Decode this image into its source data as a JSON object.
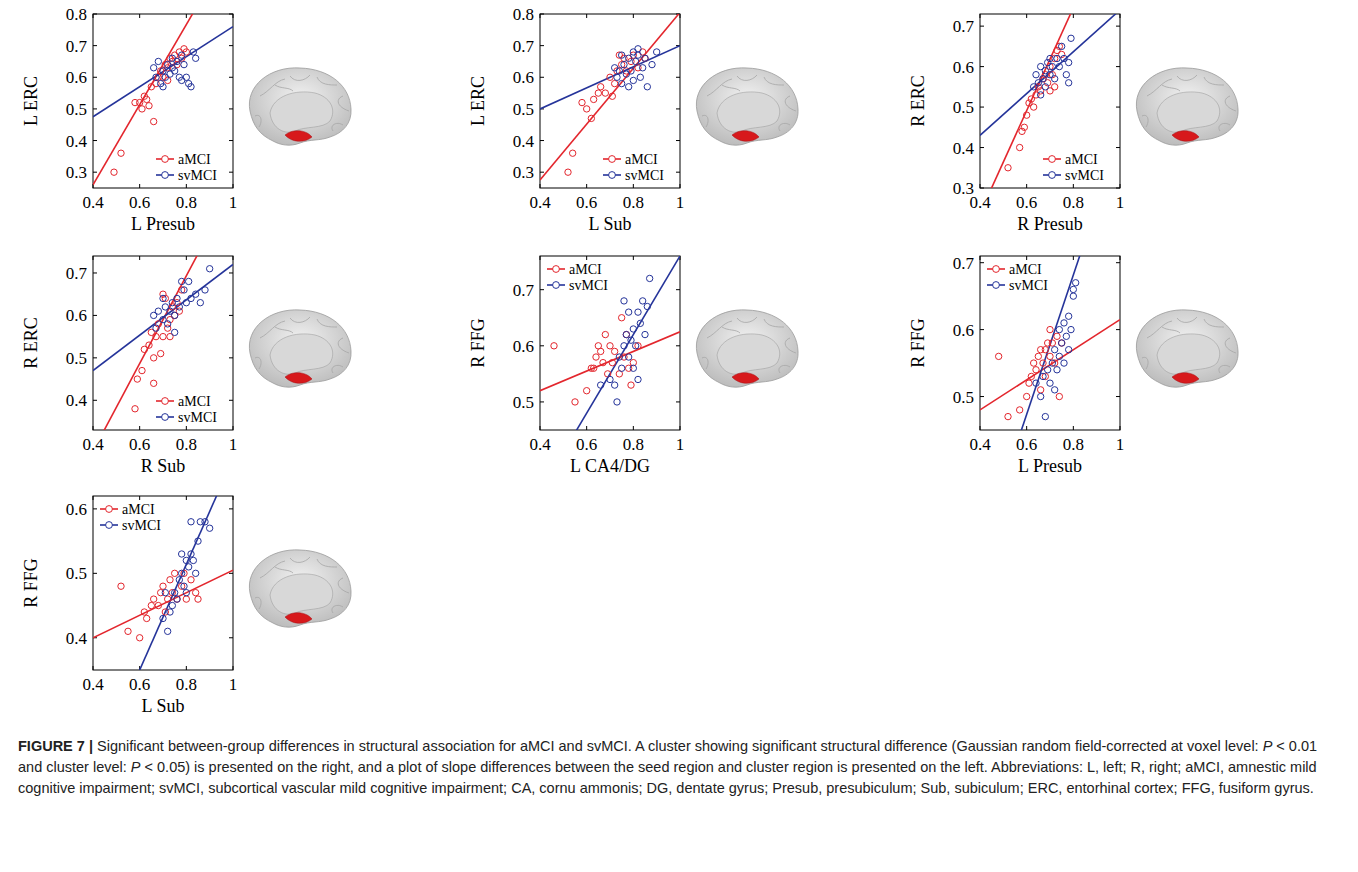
{
  "chart_data": [
    {
      "type": "scatter",
      "x_label": "L Presub",
      "y_label": "L ERC",
      "xlim": [
        0.4,
        1
      ],
      "xticks": [
        0.4,
        0.6,
        0.8,
        1
      ],
      "ylim": [
        0.25,
        0.8
      ],
      "yticks": [
        0.3,
        0.4,
        0.5,
        0.6,
        0.7,
        0.8
      ],
      "legend": "lower right",
      "series": [
        {
          "name": "aMCI",
          "color": "#e3262d",
          "marker": "circle",
          "x": [
            0.49,
            0.52,
            0.58,
            0.6,
            0.61,
            0.62,
            0.63,
            0.64,
            0.65,
            0.66,
            0.67,
            0.68,
            0.69,
            0.7,
            0.71,
            0.72,
            0.73,
            0.74,
            0.75,
            0.76,
            0.77,
            0.78,
            0.79,
            0.8,
            0.72
          ],
          "values": [
            0.3,
            0.36,
            0.52,
            0.52,
            0.5,
            0.54,
            0.53,
            0.51,
            0.57,
            0.46,
            0.58,
            0.6,
            0.62,
            0.6,
            0.64,
            0.63,
            0.66,
            0.65,
            0.67,
            0.64,
            0.68,
            0.66,
            0.69,
            0.68,
            0.59
          ],
          "fit_line": {
            "x": [
              0.4,
              1
            ],
            "values": [
              0.26,
              1.02
            ]
          }
        },
        {
          "name": "svMCI",
          "color": "#25349a",
          "marker": "circle",
          "x": [
            0.66,
            0.67,
            0.68,
            0.69,
            0.7,
            0.7,
            0.71,
            0.72,
            0.73,
            0.74,
            0.74,
            0.75,
            0.76,
            0.77,
            0.78,
            0.78,
            0.79,
            0.8,
            0.81,
            0.83,
            0.84,
            0.82
          ],
          "values": [
            0.63,
            0.6,
            0.65,
            0.58,
            0.62,
            0.57,
            0.6,
            0.64,
            0.61,
            0.63,
            0.66,
            0.62,
            0.65,
            0.6,
            0.59,
            0.67,
            0.64,
            0.6,
            0.58,
            0.68,
            0.66,
            0.57
          ],
          "fit_line": {
            "x": [
              0.4,
              1
            ],
            "values": [
              0.475,
              0.76
            ]
          }
        }
      ]
    },
    {
      "type": "scatter",
      "x_label": "L Sub",
      "y_label": "L ERC",
      "xlim": [
        0.4,
        1
      ],
      "xticks": [
        0.4,
        0.6,
        0.8,
        1
      ],
      "ylim": [
        0.25,
        0.8
      ],
      "yticks": [
        0.3,
        0.4,
        0.5,
        0.6,
        0.7,
        0.8
      ],
      "legend": "lower right",
      "series": [
        {
          "name": "aMCI",
          "color": "#e3262d",
          "marker": "circle",
          "x": [
            0.52,
            0.54,
            0.58,
            0.6,
            0.62,
            0.63,
            0.65,
            0.66,
            0.68,
            0.7,
            0.72,
            0.73,
            0.75,
            0.76,
            0.77,
            0.79,
            0.8,
            0.82,
            0.84,
            0.85,
            0.74,
            0.71
          ],
          "values": [
            0.3,
            0.36,
            0.52,
            0.5,
            0.47,
            0.53,
            0.55,
            0.57,
            0.55,
            0.6,
            0.58,
            0.62,
            0.64,
            0.66,
            0.62,
            0.65,
            0.67,
            0.63,
            0.68,
            0.66,
            0.67,
            0.54
          ],
          "fit_line": {
            "x": [
              0.4,
              1
            ],
            "values": [
              0.275,
              0.805
            ]
          }
        },
        {
          "name": "svMCI",
          "color": "#25349a",
          "marker": "circle",
          "x": [
            0.72,
            0.73,
            0.74,
            0.75,
            0.76,
            0.77,
            0.78,
            0.79,
            0.8,
            0.8,
            0.81,
            0.82,
            0.83,
            0.84,
            0.85,
            0.86,
            0.88,
            0.9,
            0.78,
            0.75,
            0.82
          ],
          "values": [
            0.63,
            0.6,
            0.62,
            0.58,
            0.64,
            0.61,
            0.66,
            0.62,
            0.68,
            0.59,
            0.65,
            0.67,
            0.6,
            0.63,
            0.66,
            0.57,
            0.64,
            0.68,
            0.57,
            0.67,
            0.69
          ],
          "fit_line": {
            "x": [
              0.4,
              1
            ],
            "values": [
              0.5,
              0.7
            ]
          }
        }
      ]
    },
    {
      "type": "scatter",
      "x_label": "R Presub",
      "y_label": "R ERC",
      "xlim": [
        0.4,
        1
      ],
      "xticks": [
        0.4,
        0.6,
        0.8,
        1
      ],
      "ylim": [
        0.3,
        0.73
      ],
      "yticks": [
        0.3,
        0.4,
        0.5,
        0.6,
        0.7
      ],
      "legend": "lower right",
      "series": [
        {
          "name": "aMCI",
          "color": "#e3262d",
          "marker": "circle",
          "x": [
            0.52,
            0.57,
            0.58,
            0.59,
            0.6,
            0.61,
            0.62,
            0.63,
            0.64,
            0.65,
            0.66,
            0.67,
            0.68,
            0.69,
            0.7,
            0.71,
            0.72,
            0.73,
            0.74,
            0.72,
            0.7,
            0.75
          ],
          "values": [
            0.35,
            0.4,
            0.44,
            0.45,
            0.48,
            0.51,
            0.52,
            0.5,
            0.53,
            0.55,
            0.54,
            0.57,
            0.58,
            0.56,
            0.6,
            0.58,
            0.62,
            0.64,
            0.65,
            0.55,
            0.54,
            0.63
          ],
          "fit_line": {
            "x": [
              0.4,
              1
            ],
            "values": [
              0.237,
              1.0
            ]
          }
        },
        {
          "name": "svMCI",
          "color": "#25349a",
          "marker": "circle",
          "x": [
            0.63,
            0.64,
            0.65,
            0.66,
            0.67,
            0.68,
            0.68,
            0.69,
            0.7,
            0.71,
            0.72,
            0.73,
            0.74,
            0.75,
            0.76,
            0.77,
            0.78,
            0.79,
            0.7,
            0.66,
            0.78
          ],
          "values": [
            0.55,
            0.58,
            0.56,
            0.6,
            0.57,
            0.59,
            0.55,
            0.61,
            0.58,
            0.6,
            0.57,
            0.62,
            0.6,
            0.65,
            0.62,
            0.58,
            0.61,
            0.67,
            0.62,
            0.53,
            0.56
          ],
          "fit_line": {
            "x": [
              0.4,
              1
            ],
            "values": [
              0.43,
              0.74
            ]
          }
        }
      ]
    },
    {
      "type": "scatter",
      "x_label": "R Sub",
      "y_label": "R ERC",
      "xlim": [
        0.4,
        1
      ],
      "xticks": [
        0.4,
        0.6,
        0.8,
        1
      ],
      "ylim": [
        0.33,
        0.74
      ],
      "yticks": [
        0.4,
        0.5,
        0.6,
        0.7
      ],
      "legend": "lower right",
      "series": [
        {
          "name": "aMCI",
          "color": "#e3262d",
          "marker": "circle",
          "x": [
            0.58,
            0.59,
            0.61,
            0.62,
            0.64,
            0.65,
            0.66,
            0.67,
            0.68,
            0.69,
            0.7,
            0.71,
            0.72,
            0.73,
            0.74,
            0.75,
            0.76,
            0.77,
            0.66,
            0.78,
            0.7,
            0.73
          ],
          "values": [
            0.38,
            0.45,
            0.47,
            0.52,
            0.53,
            0.56,
            0.5,
            0.55,
            0.58,
            0.51,
            0.65,
            0.64,
            0.57,
            0.59,
            0.62,
            0.6,
            0.63,
            0.61,
            0.44,
            0.66,
            0.55,
            0.55
          ],
          "fit_line": {
            "x": [
              0.4,
              1
            ],
            "values": [
              0.28,
              0.9
            ]
          }
        },
        {
          "name": "svMCI",
          "color": "#25349a",
          "marker": "circle",
          "x": [
            0.66,
            0.67,
            0.68,
            0.7,
            0.71,
            0.72,
            0.73,
            0.74,
            0.75,
            0.76,
            0.77,
            0.78,
            0.79,
            0.8,
            0.81,
            0.82,
            0.84,
            0.86,
            0.88,
            0.9,
            0.75,
            0.7
          ],
          "values": [
            0.6,
            0.57,
            0.61,
            0.59,
            0.62,
            0.58,
            0.61,
            0.63,
            0.6,
            0.64,
            0.62,
            0.68,
            0.66,
            0.63,
            0.68,
            0.64,
            0.65,
            0.63,
            0.66,
            0.71,
            0.56,
            0.64
          ],
          "fit_line": {
            "x": [
              0.4,
              1
            ],
            "values": [
              0.47,
              0.72
            ]
          }
        }
      ]
    },
    {
      "type": "scatter",
      "x_label": "L CA4/DG",
      "y_label": "R FFG",
      "xlim": [
        0.4,
        1
      ],
      "xticks": [
        0.4,
        0.6,
        0.8,
        1
      ],
      "ylim": [
        0.45,
        0.76
      ],
      "yticks": [
        0.5,
        0.6,
        0.7
      ],
      "legend": "upper left",
      "series": [
        {
          "name": "aMCI",
          "color": "#e3262d",
          "marker": "circle",
          "x": [
            0.46,
            0.55,
            0.6,
            0.62,
            0.63,
            0.64,
            0.65,
            0.66,
            0.67,
            0.68,
            0.69,
            0.7,
            0.71,
            0.72,
            0.74,
            0.75,
            0.76,
            0.78,
            0.79,
            0.8,
            0.82,
            0.77
          ],
          "values": [
            0.6,
            0.5,
            0.52,
            0.56,
            0.56,
            0.58,
            0.6,
            0.59,
            0.57,
            0.62,
            0.55,
            0.6,
            0.57,
            0.59,
            0.55,
            0.65,
            0.58,
            0.56,
            0.53,
            0.57,
            0.6,
            0.62
          ],
          "fit_line": {
            "x": [
              0.4,
              1
            ],
            "values": [
              0.52,
              0.625
            ]
          }
        },
        {
          "name": "svMCI",
          "color": "#25349a",
          "marker": "circle",
          "x": [
            0.66,
            0.7,
            0.72,
            0.73,
            0.74,
            0.75,
            0.76,
            0.77,
            0.78,
            0.78,
            0.79,
            0.8,
            0.8,
            0.81,
            0.82,
            0.83,
            0.84,
            0.85,
            0.86,
            0.87,
            0.76,
            0.82
          ],
          "values": [
            0.53,
            0.54,
            0.53,
            0.5,
            0.58,
            0.56,
            0.6,
            0.62,
            0.66,
            0.58,
            0.61,
            0.63,
            0.56,
            0.6,
            0.66,
            0.64,
            0.68,
            0.62,
            0.67,
            0.72,
            0.68,
            0.54
          ],
          "fit_line": {
            "x": [
              0.4,
              1
            ],
            "values": [
              0.34,
              0.76
            ]
          }
        }
      ]
    },
    {
      "type": "scatter",
      "x_label": "L Presub",
      "y_label": "R FFG",
      "xlim": [
        0.4,
        1
      ],
      "xticks": [
        0.4,
        0.6,
        0.8,
        1
      ],
      "ylim": [
        0.45,
        0.71
      ],
      "yticks": [
        0.5,
        0.6,
        0.7
      ],
      "legend": "upper left",
      "series": [
        {
          "name": "aMCI",
          "color": "#e3262d",
          "marker": "circle",
          "x": [
            0.48,
            0.52,
            0.57,
            0.6,
            0.61,
            0.62,
            0.63,
            0.64,
            0.65,
            0.66,
            0.67,
            0.68,
            0.69,
            0.7,
            0.71,
            0.72,
            0.73,
            0.74,
            0.75,
            0.68,
            0.7,
            0.66
          ],
          "values": [
            0.56,
            0.47,
            0.48,
            0.5,
            0.52,
            0.53,
            0.55,
            0.54,
            0.56,
            0.57,
            0.55,
            0.57,
            0.58,
            0.56,
            0.58,
            0.55,
            0.59,
            0.5,
            0.58,
            0.53,
            0.6,
            0.51
          ],
          "fit_line": {
            "x": [
              0.4,
              1
            ],
            "values": [
              0.48,
              0.615
            ]
          }
        },
        {
          "name": "svMCI",
          "color": "#25349a",
          "marker": "circle",
          "x": [
            0.64,
            0.66,
            0.67,
            0.68,
            0.69,
            0.7,
            0.71,
            0.72,
            0.73,
            0.74,
            0.74,
            0.75,
            0.76,
            0.77,
            0.78,
            0.79,
            0.8,
            0.8,
            0.81,
            0.76,
            0.72,
            0.78
          ],
          "values": [
            0.52,
            0.5,
            0.53,
            0.47,
            0.54,
            0.52,
            0.55,
            0.57,
            0.54,
            0.6,
            0.56,
            0.58,
            0.61,
            0.59,
            0.62,
            0.6,
            0.66,
            0.65,
            0.67,
            0.55,
            0.51,
            0.57
          ],
          "fit_line": {
            "x": [
              0.4,
              1
            ],
            "values": [
              0.265,
              0.89
            ]
          }
        }
      ]
    },
    {
      "type": "scatter",
      "x_label": "L Sub",
      "y_label": "R FFG",
      "xlim": [
        0.4,
        1
      ],
      "xticks": [
        0.4,
        0.6,
        0.8,
        1
      ],
      "ylim": [
        0.35,
        0.62
      ],
      "yticks": [
        0.4,
        0.5,
        0.6
      ],
      "legend": "upper left",
      "series": [
        {
          "name": "aMCI",
          "color": "#e3262d",
          "marker": "circle",
          "x": [
            0.52,
            0.55,
            0.6,
            0.62,
            0.63,
            0.65,
            0.66,
            0.68,
            0.69,
            0.7,
            0.72,
            0.73,
            0.74,
            0.75,
            0.76,
            0.78,
            0.8,
            0.82,
            0.84,
            0.85,
            0.71,
            0.79
          ],
          "values": [
            0.48,
            0.41,
            0.4,
            0.44,
            0.43,
            0.45,
            0.46,
            0.45,
            0.47,
            0.48,
            0.46,
            0.49,
            0.47,
            0.5,
            0.46,
            0.48,
            0.46,
            0.49,
            0.47,
            0.46,
            0.44,
            0.5
          ],
          "fit_line": {
            "x": [
              0.4,
              1
            ],
            "values": [
              0.4,
              0.505
            ]
          }
        },
        {
          "name": "svMCI",
          "color": "#25349a",
          "marker": "circle",
          "x": [
            0.7,
            0.71,
            0.72,
            0.73,
            0.74,
            0.75,
            0.76,
            0.77,
            0.78,
            0.79,
            0.8,
            0.8,
            0.81,
            0.82,
            0.83,
            0.84,
            0.85,
            0.86,
            0.88,
            0.9,
            0.82,
            0.78
          ],
          "values": [
            0.43,
            0.47,
            0.41,
            0.44,
            0.45,
            0.47,
            0.46,
            0.49,
            0.5,
            0.48,
            0.52,
            0.47,
            0.51,
            0.53,
            0.52,
            0.5,
            0.55,
            0.58,
            0.58,
            0.57,
            0.58,
            0.53
          ],
          "fit_line": {
            "x": [
              0.4,
              1
            ],
            "values": [
              0.186,
              0.678
            ]
          }
        }
      ]
    }
  ],
  "caption": {
    "label": "FIGURE 7 |",
    "text": "Significant between-group differences in structural association for aMCI and svMCI. A cluster showing significant structural difference (Gaussian random field-corrected at voxel level: P < 0.01 and cluster level: P < 0.05) is presented on the right, and a plot of slope differences between the seed region and cluster region is presented on the left. Abbreviations: L, left; R, right; aMCI, amnestic mild cognitive impairment; svMCI, subcortical vascular mild cognitive impairment; CA, cornu ammonis; DG, dentate gyrus; Presub, presubiculum; Sub, subiculum; ERC, entorhinal cortex; FFG, fusiform gyrus."
  }
}
